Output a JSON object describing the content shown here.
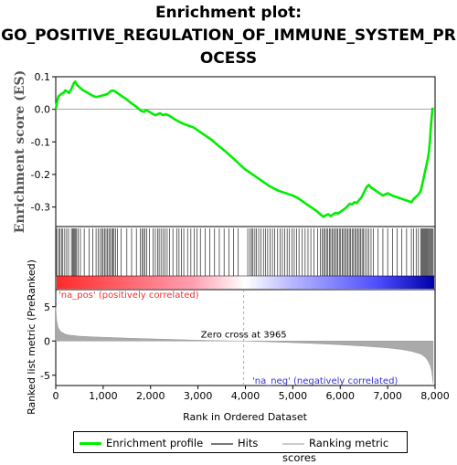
{
  "title_lines": [
    "Enrichment plot:",
    "GO_POSITIVE_REGULATION_OF_IMMUNE_SYSTEM_PR",
    "OCESS"
  ],
  "colors": {
    "enrichment": "#00ee00",
    "hits": "#000000",
    "ranking": "#aaaaaa",
    "positive": "#ff0000",
    "negative": "#0000cc"
  },
  "chart_data": {
    "type": "line",
    "title": "Enrichment plot: GO_POSITIVE_REGULATION_OF_IMMUNE_SYSTEM_PROCESS",
    "xlabel": "Rank in Ordered Dataset",
    "xlim": [
      0,
      8000
    ],
    "x_ticks": [
      0,
      1000,
      2000,
      3000,
      4000,
      5000,
      6000,
      7000,
      8000
    ],
    "x_tick_labels": [
      "0",
      "1,000",
      "2,000",
      "3,000",
      "4,000",
      "5,000",
      "6,000",
      "7,000",
      "8,000"
    ],
    "top_panel": {
      "ylabel": "Enrichment score (ES)",
      "ylim": [
        -0.36,
        0.1
      ],
      "y_ticks": [
        0.1,
        0.0,
        -0.1,
        -0.2,
        -0.3
      ],
      "y_tick_labels": [
        "0.1",
        "0.0",
        "-0.1",
        "-0.2",
        "-0.3"
      ],
      "series": [
        {
          "name": "Enrichment profile",
          "x": [
            0,
            30,
            60,
            100,
            130,
            160,
            200,
            240,
            280,
            320,
            350,
            380,
            410,
            450,
            500,
            560,
            620,
            680,
            740,
            800,
            860,
            920,
            980,
            1040,
            1100,
            1150,
            1200,
            1250,
            1300,
            1400,
            1500,
            1600,
            1700,
            1800,
            1860,
            1900,
            2000,
            2100,
            2150,
            2200,
            2260,
            2320,
            2400,
            2500,
            2600,
            2700,
            2800,
            2900,
            3000,
            3100,
            3200,
            3300,
            3400,
            3500,
            3600,
            3700,
            3800,
            3900,
            4000,
            4100,
            4200,
            4300,
            4400,
            4500,
            4600,
            4700,
            4800,
            4900,
            5000,
            5100,
            5200,
            5300,
            5400,
            5500,
            5600,
            5650,
            5700,
            5750,
            5800,
            5850,
            5900,
            5950,
            6000,
            6050,
            6100,
            6150,
            6200,
            6250,
            6300,
            6350,
            6400,
            6450,
            6500,
            6550,
            6600,
            6650,
            6700,
            6800,
            6900,
            7000,
            7100,
            7200,
            7300,
            7400,
            7500,
            7550,
            7600,
            7650,
            7700,
            7730,
            7760,
            7790,
            7820,
            7850,
            7870,
            7890,
            7910,
            7930,
            7950
          ],
          "y": [
            0.0,
            0.025,
            0.04,
            0.045,
            0.048,
            0.05,
            0.058,
            0.055,
            0.05,
            0.06,
            0.07,
            0.08,
            0.085,
            0.075,
            0.068,
            0.06,
            0.055,
            0.05,
            0.045,
            0.04,
            0.038,
            0.04,
            0.042,
            0.045,
            0.048,
            0.055,
            0.058,
            0.055,
            0.05,
            0.04,
            0.03,
            0.018,
            0.008,
            -0.005,
            -0.008,
            -0.002,
            -0.01,
            -0.018,
            -0.015,
            -0.012,
            -0.018,
            -0.015,
            -0.02,
            -0.03,
            -0.038,
            -0.045,
            -0.05,
            -0.055,
            -0.065,
            -0.075,
            -0.085,
            -0.095,
            -0.108,
            -0.12,
            -0.132,
            -0.145,
            -0.158,
            -0.172,
            -0.185,
            -0.195,
            -0.205,
            -0.215,
            -0.225,
            -0.235,
            -0.243,
            -0.25,
            -0.255,
            -0.26,
            -0.265,
            -0.272,
            -0.282,
            -0.292,
            -0.302,
            -0.312,
            -0.325,
            -0.33,
            -0.325,
            -0.322,
            -0.328,
            -0.322,
            -0.318,
            -0.32,
            -0.315,
            -0.31,
            -0.305,
            -0.298,
            -0.29,
            -0.292,
            -0.285,
            -0.288,
            -0.278,
            -0.27,
            -0.255,
            -0.24,
            -0.232,
            -0.24,
            -0.245,
            -0.255,
            -0.265,
            -0.258,
            -0.265,
            -0.27,
            -0.275,
            -0.28,
            -0.285,
            -0.275,
            -0.268,
            -0.262,
            -0.25,
            -0.23,
            -0.21,
            -0.19,
            -0.17,
            -0.15,
            -0.13,
            -0.1,
            -0.06,
            -0.02,
            0.005
          ]
        }
      ]
    },
    "hits_panel": {
      "label": "Hits",
      "positions": [
        20,
        60,
        90,
        120,
        150,
        190,
        230,
        270,
        330,
        360,
        380,
        400,
        420,
        440,
        470,
        520,
        600,
        700,
        780,
        850,
        900,
        940,
        970,
        1000,
        1030,
        1060,
        1090,
        1120,
        1150,
        1180,
        1200,
        1230,
        1260,
        1300,
        1380,
        1500,
        1600,
        1700,
        1780,
        1820,
        1850,
        1880,
        1920,
        1980,
        2050,
        2100,
        2150,
        2180,
        2220,
        2260,
        2300,
        2350,
        2400,
        2470,
        2550,
        2600,
        2650,
        2700,
        2780,
        2850,
        2920,
        2980,
        3050,
        3150,
        3250,
        3350,
        3450,
        3550,
        3650,
        3750,
        3850,
        4050,
        4100,
        4130,
        4160,
        4200,
        4230,
        4280,
        4330,
        4380,
        4420,
        4470,
        4520,
        4570,
        4620,
        4680,
        4730,
        4780,
        4830,
        4880,
        4930,
        4980,
        5030,
        5080,
        5130,
        5200,
        5260,
        5320,
        5380,
        5450,
        5520,
        5580,
        5620,
        5650,
        5680,
        5710,
        5740,
        5770,
        5800,
        5830,
        5860,
        5890,
        5920,
        5950,
        5980,
        6010,
        6040,
        6070,
        6100,
        6130,
        6160,
        6190,
        6220,
        6250,
        6280,
        6310,
        6340,
        6370,
        6400,
        6430,
        6460,
        6490,
        6520,
        6560,
        6600,
        6650,
        6700,
        6800,
        6900,
        7000,
        7100,
        7200,
        7300,
        7400,
        7500,
        7550,
        7600,
        7650,
        7700,
        7720,
        7740,
        7760,
        7780,
        7800,
        7820,
        7840,
        7860,
        7880,
        7900,
        7920,
        7940,
        7960
      ]
    },
    "ranking_panel": {
      "ylabel": "Ranked list metric (PreRanked)",
      "ylim": [
        -6.5,
        7.5
      ],
      "y_ticks": [
        5,
        0,
        -5
      ],
      "y_tick_labels": [
        "5",
        "0",
        "-5"
      ],
      "series": [
        {
          "name": "Ranking metric scores",
          "x": [
            0,
            20,
            50,
            100,
            200,
            300,
            500,
            800,
            1200,
            1600,
            2000,
            2500,
            3000,
            3500,
            3965,
            4500,
            5000,
            5500,
            6000,
            6500,
            7000,
            7300,
            7500,
            7700,
            7800,
            7850,
            7900,
            7930,
            7950,
            7960
          ],
          "y": [
            5.0,
            3.0,
            2.0,
            1.4,
            1.0,
            0.85,
            0.7,
            0.6,
            0.5,
            0.4,
            0.32,
            0.22,
            0.12,
            0.05,
            0.0,
            -0.12,
            -0.25,
            -0.38,
            -0.55,
            -0.75,
            -1.0,
            -1.25,
            -1.5,
            -1.9,
            -2.4,
            -2.9,
            -3.6,
            -4.5,
            -5.6,
            -6.2
          ]
        }
      ],
      "zero_cross_label": "Zero cross at 3965",
      "zero_cross": 3965,
      "pos_label": "'na_pos' (positively correlated)",
      "neg_label": "'na_neg' (negatively correlated)"
    }
  },
  "legend": {
    "enrichment": "Enrichment profile",
    "hits": "Hits",
    "ranking": "Ranking metric scores"
  }
}
